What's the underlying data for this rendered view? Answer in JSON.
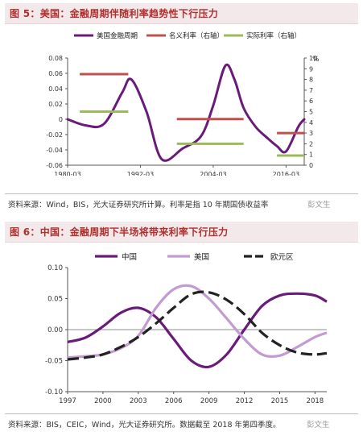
{
  "figure1": {
    "title": "图 5：美国：金融周期伴随利率趋势性下行压力",
    "source": "资料来源：Wind，BIS，光大证券研究所计算。利率是指 10 年期国债收益率",
    "watermark": "彭文生",
    "right_axis_unit": "%",
    "chart_data": {
      "type": "line",
      "legend_position": "top",
      "x_tick_labels": [
        "1980-03",
        "1992-03",
        "2004-03",
        "2016-03"
      ],
      "x_range": [
        1980,
        2019
      ],
      "y_left": {
        "ylim": [
          -0.06,
          0.08
        ],
        "ticks": [
          "0.08",
          "0.06",
          "0.04",
          "0.02",
          "0",
          "-0.02",
          "-0.04",
          "-0.06"
        ]
      },
      "y_right": {
        "ylim": [
          0,
          10
        ],
        "ticks": [
          "10",
          "9",
          "8",
          "7",
          "6",
          "5",
          "4",
          "3",
          "2",
          "1",
          "0"
        ]
      },
      "series": [
        {
          "name": "美国金融周期",
          "axis": "left",
          "color": "#6a1b7a",
          "x": [
            1980,
            1983,
            1986,
            1989,
            1990.5,
            1993,
            1995.5,
            1999,
            2002,
            2004,
            2006,
            2007.5,
            2009,
            2011,
            2013,
            2014.5,
            2016,
            2018,
            2019
          ],
          "y": [
            0.0,
            -0.008,
            -0.006,
            0.035,
            0.052,
            0.01,
            -0.052,
            -0.038,
            -0.022,
            0.018,
            0.07,
            0.052,
            0.015,
            -0.01,
            -0.025,
            -0.035,
            -0.042,
            -0.01,
            0.0
          ]
        },
        {
          "name": "名义利率（右轴）",
          "axis": "right",
          "color": "#c0504d",
          "segments": [
            {
              "x": [
                1982,
                1990
              ],
              "y": 8.5
            },
            {
              "x": [
                1998,
                2009
              ],
              "y": 4.3
            },
            {
              "x": [
                2014.5,
                2019
              ],
              "y": 3.0
            }
          ]
        },
        {
          "name": "实际利率（右轴）",
          "axis": "right",
          "color": "#9bbb59",
          "segments": [
            {
              "x": [
                1982,
                1990
              ],
              "y": 5.0
            },
            {
              "x": [
                1998,
                2009
              ],
              "y": 2.0
            },
            {
              "x": [
                2014.5,
                2019
              ],
              "y": 0.9
            }
          ]
        }
      ]
    }
  },
  "figure2": {
    "title": "图 6：中国：金融周期下半场将带来利率下行压力",
    "source": "资料来源：BIS，CEIC，Wind，光大证券研究所。数据截至 2018 年第四季度。",
    "watermark": "彭文生",
    "chart_data": {
      "type": "line",
      "legend_position": "top",
      "x_range": [
        1997,
        2019
      ],
      "x_tick_labels": [
        "1997",
        "2000",
        "2003",
        "2006",
        "2009",
        "2012",
        "2015",
        "2018"
      ],
      "x_ticks": [
        1997,
        2000,
        2003,
        2006,
        2009,
        2012,
        2015,
        2018
      ],
      "ylim": [
        -0.1,
        0.1
      ],
      "y_ticks": [
        "0.10",
        "0.05",
        "0.00",
        "-0.05",
        "-0.10"
      ],
      "series": [
        {
          "name": "中国",
          "color": "#6a1b7a",
          "dash": false,
          "x": [
            1997,
            1998.5,
            2000,
            2001.5,
            2003,
            2004.5,
            2006,
            2007.5,
            2009,
            2010.5,
            2012,
            2013.5,
            2015,
            2016.5,
            2018,
            2019
          ],
          "y": [
            -0.02,
            -0.013,
            0.005,
            0.027,
            0.035,
            0.02,
            -0.015,
            -0.05,
            -0.06,
            -0.04,
            0.0,
            0.038,
            0.055,
            0.058,
            0.055,
            0.045
          ]
        },
        {
          "name": "美国",
          "color": "#c39bd3",
          "dash": false,
          "x": [
            1997,
            1998.5,
            2000,
            2001.5,
            2003,
            2004.5,
            2006,
            2007.5,
            2009,
            2010.5,
            2012,
            2013.5,
            2015,
            2016.5,
            2018,
            2019
          ],
          "y": [
            -0.045,
            -0.043,
            -0.04,
            -0.03,
            -0.01,
            0.035,
            0.065,
            0.07,
            0.05,
            0.018,
            -0.015,
            -0.04,
            -0.042,
            -0.028,
            -0.012,
            -0.005
          ]
        },
        {
          "name": "欧元区",
          "color": "#222222",
          "dash": true,
          "x": [
            1997,
            1998.5,
            2000,
            2001.5,
            2003,
            2004.5,
            2006,
            2007.5,
            2009,
            2010.5,
            2012,
            2013.5,
            2015,
            2016.5,
            2018,
            2019
          ],
          "y": [
            -0.048,
            -0.045,
            -0.04,
            -0.028,
            -0.012,
            0.01,
            0.035,
            0.057,
            0.06,
            0.048,
            0.025,
            -0.005,
            -0.025,
            -0.037,
            -0.04,
            -0.038
          ]
        }
      ]
    }
  }
}
